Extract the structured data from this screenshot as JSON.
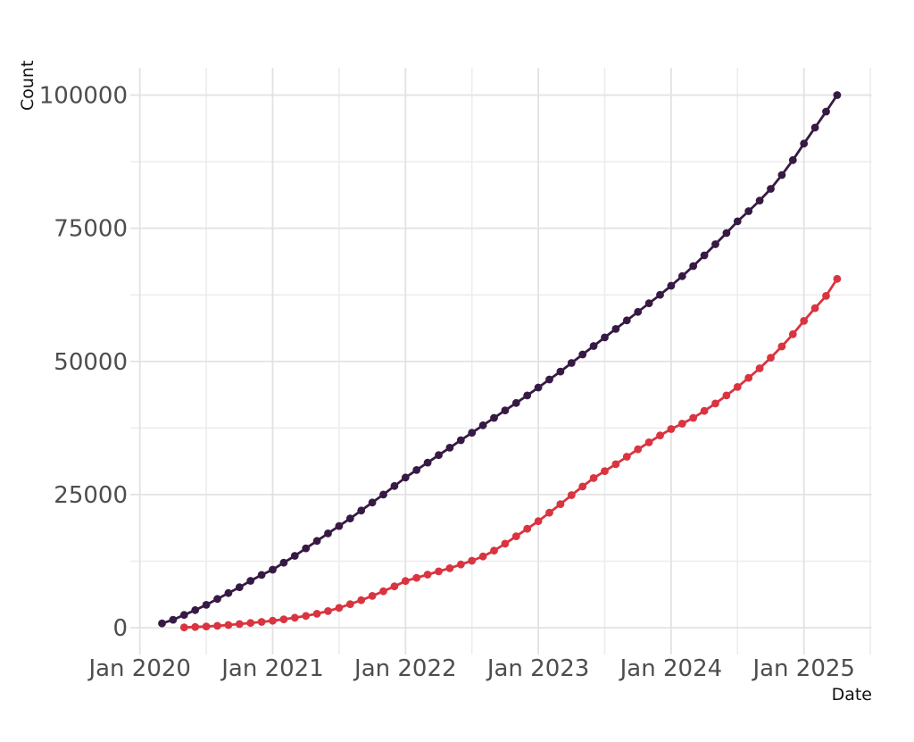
{
  "chart_data": {
    "type": "line",
    "title": "",
    "xlabel": "Date",
    "ylabel": "Count",
    "x_tick_labels": [
      "Jan 2020",
      "Jan 2021",
      "Jan 2022",
      "Jan 2023",
      "Jan 2024",
      "Jan 2025"
    ],
    "x_tick_months": [
      "2020-01",
      "2021-01",
      "2022-01",
      "2023-01",
      "2024-01",
      "2025-01"
    ],
    "x_minor_months": [
      "2020-07",
      "2021-07",
      "2022-07",
      "2023-07",
      "2024-07",
      "2025-07"
    ],
    "y_ticks": [
      0,
      25000,
      50000,
      75000,
      100000
    ],
    "y_tick_labels": [
      "0",
      "25000",
      "50000",
      "75000",
      "100000"
    ],
    "y_minor_ticks": [
      12500,
      37500,
      62500,
      87500
    ],
    "ylim": [
      0,
      100000
    ],
    "grid": "major+minor",
    "legend_position": "none",
    "marker": "circle",
    "colors": {
      "series_dark": "#371a44",
      "series_red": "#d93440",
      "grid_major": "#e2e2e2",
      "grid_minor": "#ececec",
      "tick_text": "#4d4d4d",
      "axis_title_text": "#111111",
      "background": "#ffffff"
    },
    "series": [
      {
        "name": "series-dark",
        "color": "#371a44",
        "months": [
          "2020-03",
          "2020-04",
          "2020-05",
          "2020-06",
          "2020-07",
          "2020-08",
          "2020-09",
          "2020-10",
          "2020-11",
          "2020-12",
          "2021-01",
          "2021-02",
          "2021-03",
          "2021-04",
          "2021-05",
          "2021-06",
          "2021-07",
          "2021-08",
          "2021-09",
          "2021-10",
          "2021-11",
          "2021-12",
          "2022-01",
          "2022-02",
          "2022-03",
          "2022-04",
          "2022-05",
          "2022-06",
          "2022-07",
          "2022-08",
          "2022-09",
          "2022-10",
          "2022-11",
          "2022-12",
          "2023-01",
          "2023-02",
          "2023-03",
          "2023-04",
          "2023-05",
          "2023-06",
          "2023-07",
          "2023-08",
          "2023-09",
          "2023-10",
          "2023-11",
          "2023-12",
          "2024-01",
          "2024-02",
          "2024-03",
          "2024-04",
          "2024-05",
          "2024-06",
          "2024-07",
          "2024-08",
          "2024-09",
          "2024-10",
          "2024-11",
          "2024-12",
          "2025-01",
          "2025-02",
          "2025-03",
          "2025-04"
        ],
        "values": [
          800,
          1500,
          2400,
          3300,
          4300,
          5400,
          6500,
          7600,
          8800,
          9900,
          10900,
          12200,
          13500,
          14900,
          16300,
          17700,
          19100,
          20500,
          22000,
          23500,
          25000,
          26600,
          28200,
          29600,
          31000,
          32400,
          33800,
          35200,
          36600,
          38000,
          39400,
          40800,
          42200,
          43600,
          45100,
          46600,
          48100,
          49700,
          51300,
          52900,
          54500,
          56100,
          57700,
          59300,
          60900,
          62500,
          64200,
          66000,
          67900,
          69900,
          72000,
          74100,
          76300,
          78200,
          80200,
          82400,
          85000,
          87800,
          90900,
          93900,
          96900,
          100000
        ]
      },
      {
        "name": "series-red",
        "color": "#d93440",
        "months": [
          "2020-05",
          "2020-06",
          "2020-07",
          "2020-08",
          "2020-09",
          "2020-10",
          "2020-11",
          "2020-12",
          "2021-01",
          "2021-02",
          "2021-03",
          "2021-04",
          "2021-05",
          "2021-06",
          "2021-07",
          "2021-08",
          "2021-09",
          "2021-10",
          "2021-11",
          "2021-12",
          "2022-01",
          "2022-02",
          "2022-03",
          "2022-04",
          "2022-05",
          "2022-06",
          "2022-07",
          "2022-08",
          "2022-09",
          "2022-10",
          "2022-11",
          "2022-12",
          "2023-01",
          "2023-02",
          "2023-03",
          "2023-04",
          "2023-05",
          "2023-06",
          "2023-07",
          "2023-08",
          "2023-09",
          "2023-10",
          "2023-11",
          "2023-12",
          "2024-01",
          "2024-02",
          "2024-03",
          "2024-04",
          "2024-05",
          "2024-06",
          "2024-07",
          "2024-08",
          "2024-09",
          "2024-10",
          "2024-11",
          "2024-12",
          "2025-01",
          "2025-02",
          "2025-03",
          "2025-04"
        ],
        "values": [
          50,
          130,
          230,
          360,
          510,
          690,
          890,
          1090,
          1310,
          1570,
          1870,
          2220,
          2620,
          3120,
          3720,
          4420,
          5170,
          5970,
          6840,
          7770,
          8770,
          9370,
          9970,
          10570,
          11170,
          11870,
          12570,
          13370,
          14470,
          15770,
          17170,
          18570,
          20000,
          21600,
          23200,
          24900,
          26500,
          28100,
          29400,
          30700,
          32100,
          33500,
          34800,
          36100,
          37300,
          38300,
          39400,
          40700,
          42100,
          43600,
          45200,
          46900,
          48700,
          50700,
          52800,
          55100,
          57600,
          60000,
          62300,
          65500
        ]
      }
    ]
  }
}
